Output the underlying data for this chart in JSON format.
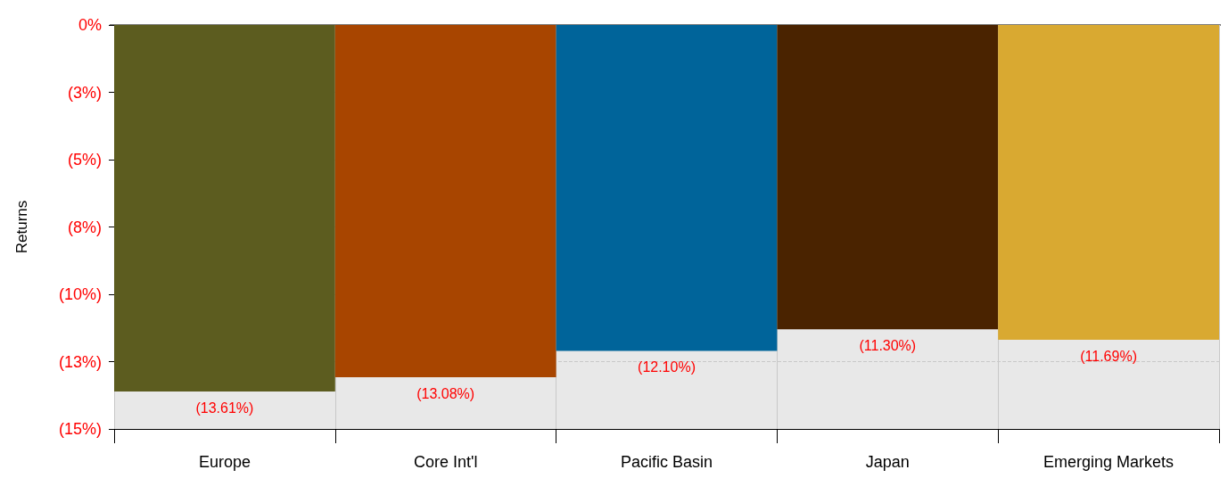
{
  "chart_data": {
    "type": "bar",
    "ylabel": "Returns",
    "categories": [
      "Europe",
      "Core Int'l",
      "Pacific Basin",
      "Japan",
      "Emerging Markets"
    ],
    "values": [
      -13.61,
      -13.08,
      -12.1,
      -11.3,
      -11.69
    ],
    "colors": [
      "#5c5c1f",
      "#a84500",
      "#00649a",
      "#4a2300",
      "#d9a931"
    ],
    "value_labels": [
      "(13.61%)",
      "(13.08%)",
      "(12.10%)",
      "(11.30%)",
      "(11.69%)"
    ],
    "ylim": [
      -15,
      0
    ],
    "yticks": [
      {
        "value": -15,
        "label": "(15%)"
      },
      {
        "value": -12.5,
        "label": "(13%)"
      },
      {
        "value": -10,
        "label": "(10%)"
      },
      {
        "value": -7.5,
        "label": "(8%)"
      },
      {
        "value": -5,
        "label": "(5%)"
      },
      {
        "value": -2.5,
        "label": "(3%)"
      },
      {
        "value": 0,
        "label": "0%"
      }
    ],
    "grid": "y"
  }
}
